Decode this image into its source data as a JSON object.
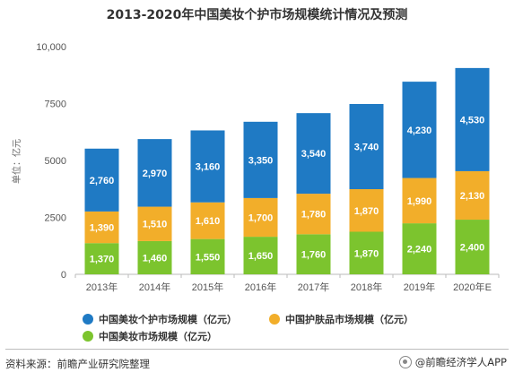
{
  "chart_data": {
    "type": "bar",
    "stacked": true,
    "title": "2013-2020年中国美妆个护市场规模统计情况及预测",
    "ylabel": "单位：亿元",
    "xlabel": "",
    "ylim": [
      0,
      10000
    ],
    "yticks": [
      "0",
      "2500",
      "5000",
      "7500",
      "10,000"
    ],
    "ytick_values": [
      0,
      2500,
      5000,
      7500,
      10000
    ],
    "categories": [
      "2013年",
      "2014年",
      "2015年",
      "2016年",
      "2017年",
      "2018年",
      "2019年",
      "2020年E"
    ],
    "series": [
      {
        "name": "中国美妆市场规模（亿元）",
        "color": "#7cc42e",
        "values": [
          1370,
          1460,
          1550,
          1650,
          1760,
          1870,
          2240,
          2400
        ],
        "labels": [
          "1,370",
          "1,460",
          "1,550",
          "1,650",
          "1,760",
          "1,870",
          "2,240",
          "2,400"
        ]
      },
      {
        "name": "中国护肤品市场规模（亿元）",
        "color": "#f2ae2a",
        "values": [
          1390,
          1510,
          1610,
          1700,
          1780,
          1870,
          1990,
          2130
        ],
        "labels": [
          "1,390",
          "1,510",
          "1,610",
          "1,700",
          "1,780",
          "1,870",
          "1,990",
          "2,130"
        ]
      },
      {
        "name": "中国美妆个护市场规模（亿元）",
        "color": "#1f7ac4",
        "values": [
          2760,
          2970,
          3160,
          3350,
          3540,
          3740,
          4230,
          4530
        ],
        "labels": [
          "2,760",
          "2,970",
          "3,160",
          "3,350",
          "3,540",
          "3,740",
          "4,230",
          "4,530"
        ]
      }
    ],
    "grid": false,
    "legend_position": "bottom"
  },
  "legend": {
    "item1": {
      "label": "中国美妆个护市场规模（亿元）",
      "color": "#1f7ac4"
    },
    "item2": {
      "label": "中国护肤品市场规模（亿元）",
      "color": "#f2ae2a"
    },
    "item3": {
      "label": "中国美妆市场规模（亿元）",
      "color": "#7cc42e"
    }
  },
  "footer": {
    "source": "资料来源：前瞻产业研究院整理",
    "brand": "@前瞻经济学人APP"
  }
}
